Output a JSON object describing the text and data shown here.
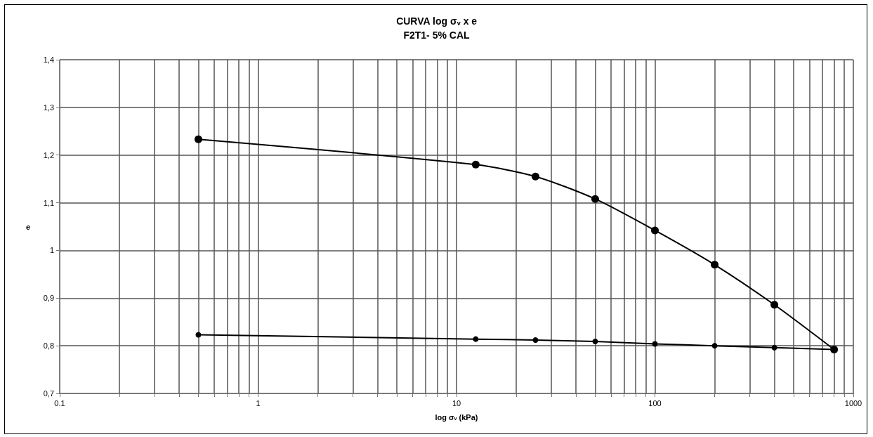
{
  "chart_data": {
    "type": "line",
    "title": "CURVA log σ$_{v}$ x e",
    "subtitle": "F2T1- 5% CAL",
    "xlabel": "log σ$_{v}$ (kPa)",
    "ylabel": "e",
    "log": "x",
    "grid": true,
    "marker": "circle",
    "line_style": "solid",
    "xlim": [
      0.1,
      1000
    ],
    "xticks": [
      0.1,
      {
        "value": 0.2,
        "label": null
      },
      {
        "value": 0.3,
        "label": null
      },
      {
        "value": 0.4,
        "label": null
      },
      {
        "value": 0.5,
        "label": null
      },
      {
        "value": 0.6,
        "label": null
      },
      {
        "value": 0.7,
        "label": null
      },
      {
        "value": 0.8,
        "label": null
      },
      {
        "value": 0.9,
        "label": null
      },
      1,
      {
        "value": 2,
        "label": null
      },
      {
        "value": 3,
        "label": null
      },
      {
        "value": 4,
        "label": null
      },
      {
        "value": 5,
        "label": null
      },
      {
        "value": 6,
        "label": null
      },
      {
        "value": 7,
        "label": null
      },
      {
        "value": 8,
        "label": null
      },
      {
        "value": 9,
        "label": null
      },
      10,
      {
        "value": 20,
        "label": null
      },
      {
        "value": 30,
        "label": null
      },
      {
        "value": 40,
        "label": null
      },
      {
        "value": 50,
        "label": null
      },
      {
        "value": 60,
        "label": null
      },
      {
        "value": 70,
        "label": null
      },
      {
        "value": 80,
        "label": null
      },
      {
        "value": 90,
        "label": null
      },
      100,
      {
        "value": 200,
        "label": null
      },
      {
        "value": 300,
        "label": null
      },
      {
        "value": 400,
        "label": null
      },
      {
        "value": 500,
        "label": null
      },
      {
        "value": 600,
        "label": null
      },
      {
        "value": 700,
        "label": null
      },
      {
        "value": 800,
        "label": null
      },
      {
        "value": 900,
        "label": null
      },
      1000
    ],
    "ylim": [
      0.7,
      1.4
    ],
    "yticks": [
      {
        "value": 0.7,
        "label": "0,7"
      },
      {
        "value": 0.8,
        "label": "0,8"
      },
      {
        "value": 0.9,
        "label": "0,9"
      },
      1,
      {
        "value": 1.1,
        "label": "1,1"
      },
      {
        "value": 1.2,
        "label": "1,2"
      },
      {
        "value": 1.3,
        "label": "1,3"
      },
      {
        "value": 1.4,
        "label": "1,4"
      }
    ],
    "series": [
      {
        "color": "#000000",
        "x": [
          0.5,
          12.5,
          25,
          50,
          100,
          200,
          400,
          800
        ],
        "values": [
          1.233,
          1.18,
          1.155,
          1.108,
          1.042,
          0.97,
          0.886,
          0.792
        ]
      },
      {
        "color": "#000000",
        "x": [
          0.5,
          12.5,
          25,
          50,
          100,
          200,
          400,
          800
        ],
        "values": [
          0.823,
          0.814,
          0.812,
          0.809,
          0.804,
          0.8,
          0.796,
          0.792
        ]
      }
    ]
  }
}
